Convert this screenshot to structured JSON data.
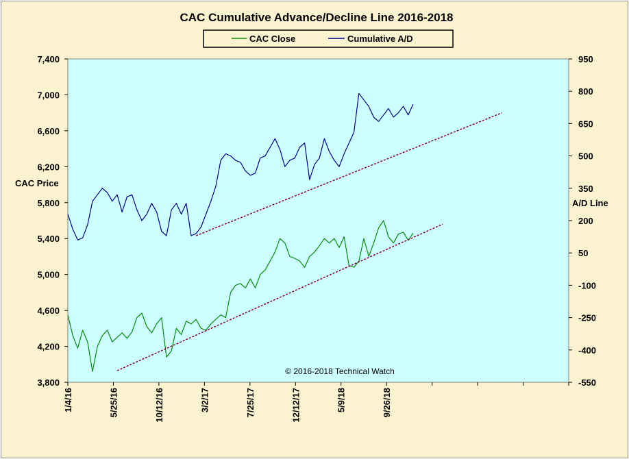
{
  "chart_data": {
    "type": "line",
    "title": "CAC Cumulative  Advance/Decline  Line  2016-2018",
    "copyright": "© 2016-2018  Technical  Watch",
    "legend": {
      "placement": "top-center",
      "entries": [
        "CAC Close",
        "Cumulative A/D"
      ]
    },
    "x_axis": {
      "ticks": [
        "1/4/16",
        "5/25/16",
        "10/12/16",
        "3/2/17",
        "7/25/17",
        "12/12/17",
        "5/9/18",
        "9/26/18"
      ],
      "empty_tick_slots": 3
    },
    "y_left": {
      "label": "CAC Price",
      "min": 3800,
      "max": 7400,
      "ticks": [
        "7,400",
        "7,000",
        "6,600",
        "6,200",
        "5,800",
        "5,400",
        "5,000",
        "4,600",
        "4,200",
        "3,800"
      ]
    },
    "y_right": {
      "label": "A/D Line",
      "min": -550,
      "max": 950,
      "ticks": [
        "950",
        "800",
        "650",
        "500",
        "350",
        "200",
        "50",
        "-100",
        "-250",
        "-400",
        "-550"
      ]
    },
    "grid": false,
    "series": [
      {
        "name": "CAC Close",
        "axis": "left",
        "color": "#0a8a0a",
        "x": [
          0,
          1,
          2,
          3,
          4,
          5,
          6,
          7,
          8,
          9,
          10,
          11,
          12,
          13,
          14,
          15,
          16,
          17,
          18,
          19,
          20,
          21,
          22,
          23,
          24,
          25,
          26,
          27,
          28,
          29,
          30,
          31,
          32,
          33,
          34,
          35,
          36,
          37,
          38,
          39,
          40,
          41,
          42,
          43,
          44,
          45,
          46,
          47,
          48,
          49,
          50,
          51,
          52,
          53,
          54,
          55,
          56,
          57,
          58,
          59,
          60,
          61,
          62,
          63,
          64,
          65,
          66,
          67,
          68,
          69,
          70
        ],
        "values": [
          4550,
          4320,
          4180,
          4380,
          4250,
          3920,
          4200,
          4320,
          4380,
          4250,
          4300,
          4350,
          4290,
          4360,
          4520,
          4570,
          4420,
          4350,
          4450,
          4520,
          4080,
          4150,
          4400,
          4330,
          4480,
          4450,
          4500,
          4400,
          4380,
          4450,
          4500,
          4550,
          4520,
          4800,
          4880,
          4900,
          4850,
          4950,
          4850,
          5000,
          5050,
          5150,
          5250,
          5400,
          5350,
          5200,
          5180,
          5150,
          5080,
          5200,
          5250,
          5320,
          5400,
          5350,
          5400,
          5300,
          5420,
          5100,
          5080,
          5150,
          5400,
          5200,
          5350,
          5520,
          5600,
          5420,
          5350,
          5450,
          5470,
          5380,
          5460
        ],
        "trend": {
          "x": [
            10,
            76
          ],
          "values": [
            3930,
            5560
          ]
        }
      },
      {
        "name": "Cumulative A/D",
        "axis": "right",
        "color": "#000088",
        "x": [
          0,
          1,
          2,
          3,
          4,
          5,
          6,
          7,
          8,
          9,
          10,
          11,
          12,
          13,
          14,
          15,
          16,
          17,
          18,
          19,
          20,
          21,
          22,
          23,
          24,
          25,
          26,
          27,
          28,
          29,
          30,
          31,
          32,
          33,
          34,
          35,
          36,
          37,
          38,
          39,
          40,
          41,
          42,
          43,
          44,
          45,
          46,
          47,
          48,
          49,
          50,
          51,
          52,
          53,
          54,
          55,
          56,
          57,
          58,
          59,
          60,
          61,
          62,
          63,
          64,
          65,
          66,
          67,
          68,
          69,
          70
        ],
        "values": [
          230,
          160,
          110,
          120,
          180,
          290,
          320,
          350,
          330,
          290,
          320,
          240,
          310,
          320,
          250,
          200,
          230,
          280,
          240,
          150,
          130,
          250,
          280,
          230,
          280,
          130,
          140,
          170,
          230,
          290,
          360,
          480,
          510,
          500,
          480,
          470,
          430,
          410,
          420,
          490,
          500,
          540,
          580,
          530,
          450,
          480,
          490,
          540,
          560,
          390,
          460,
          490,
          580,
          520,
          480,
          450,
          510,
          560,
          610,
          790,
          760,
          730,
          680,
          660,
          690,
          720,
          680,
          700,
          730,
          690,
          740
        ],
        "trend": {
          "x": [
            26,
            88
          ],
          "values": [
            130,
            700
          ]
        }
      }
    ]
  }
}
